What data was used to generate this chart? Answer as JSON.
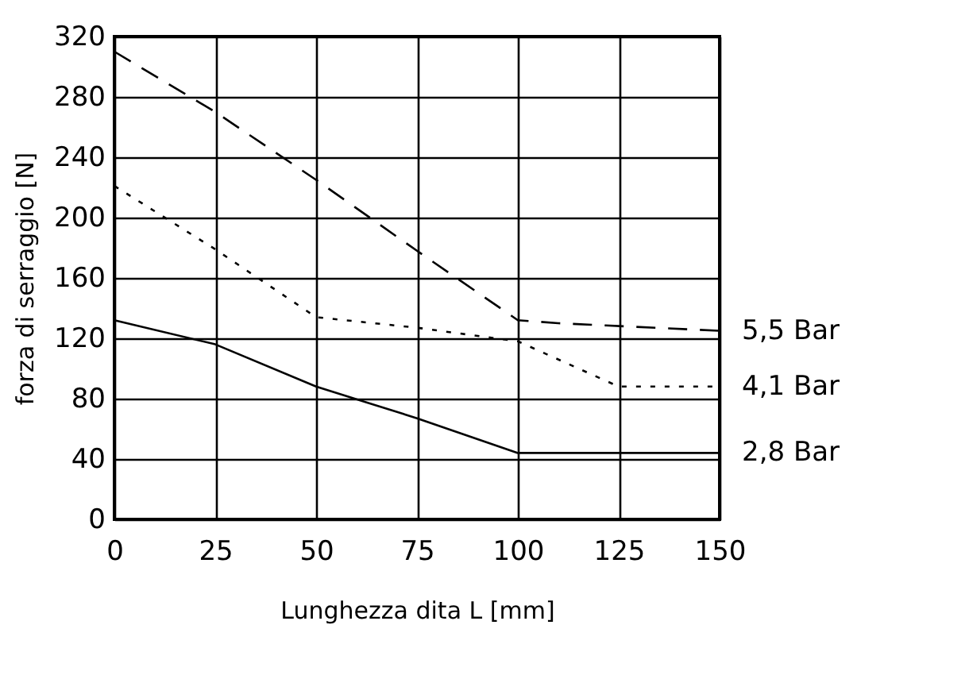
{
  "chart_data": {
    "type": "line",
    "xlabel": "Lunghezza dita L [mm]",
    "ylabel": "forza di serraggio [N]",
    "xlim": [
      0,
      150
    ],
    "xticks": [
      0,
      25,
      50,
      75,
      100,
      125,
      150
    ],
    "ylim": [
      0,
      320
    ],
    "yticks": [
      0,
      40,
      80,
      120,
      160,
      200,
      240,
      280,
      320
    ],
    "grid": true,
    "legend": false,
    "marker": "none",
    "series": [
      {
        "name": "5,5 Bar",
        "color": "#000000",
        "line_style": "dashed",
        "x": [
          0,
          25,
          50,
          75,
          100,
          110,
          150
        ],
        "values": [
          310,
          270,
          225,
          178,
          132,
          130,
          125
        ]
      },
      {
        "name": "4,1 Bar",
        "color": "#000000",
        "line_style": "dotted",
        "x": [
          0,
          25,
          50,
          75,
          100,
          125,
          150
        ],
        "values": [
          221,
          179,
          134,
          127,
          118,
          88,
          88
        ]
      },
      {
        "name": "2,8 Bar",
        "color": "#000000",
        "line_style": "solid",
        "x": [
          0,
          25,
          50,
          75,
          100,
          150
        ],
        "values": [
          132,
          116,
          88,
          67,
          44,
          44
        ]
      }
    ]
  }
}
